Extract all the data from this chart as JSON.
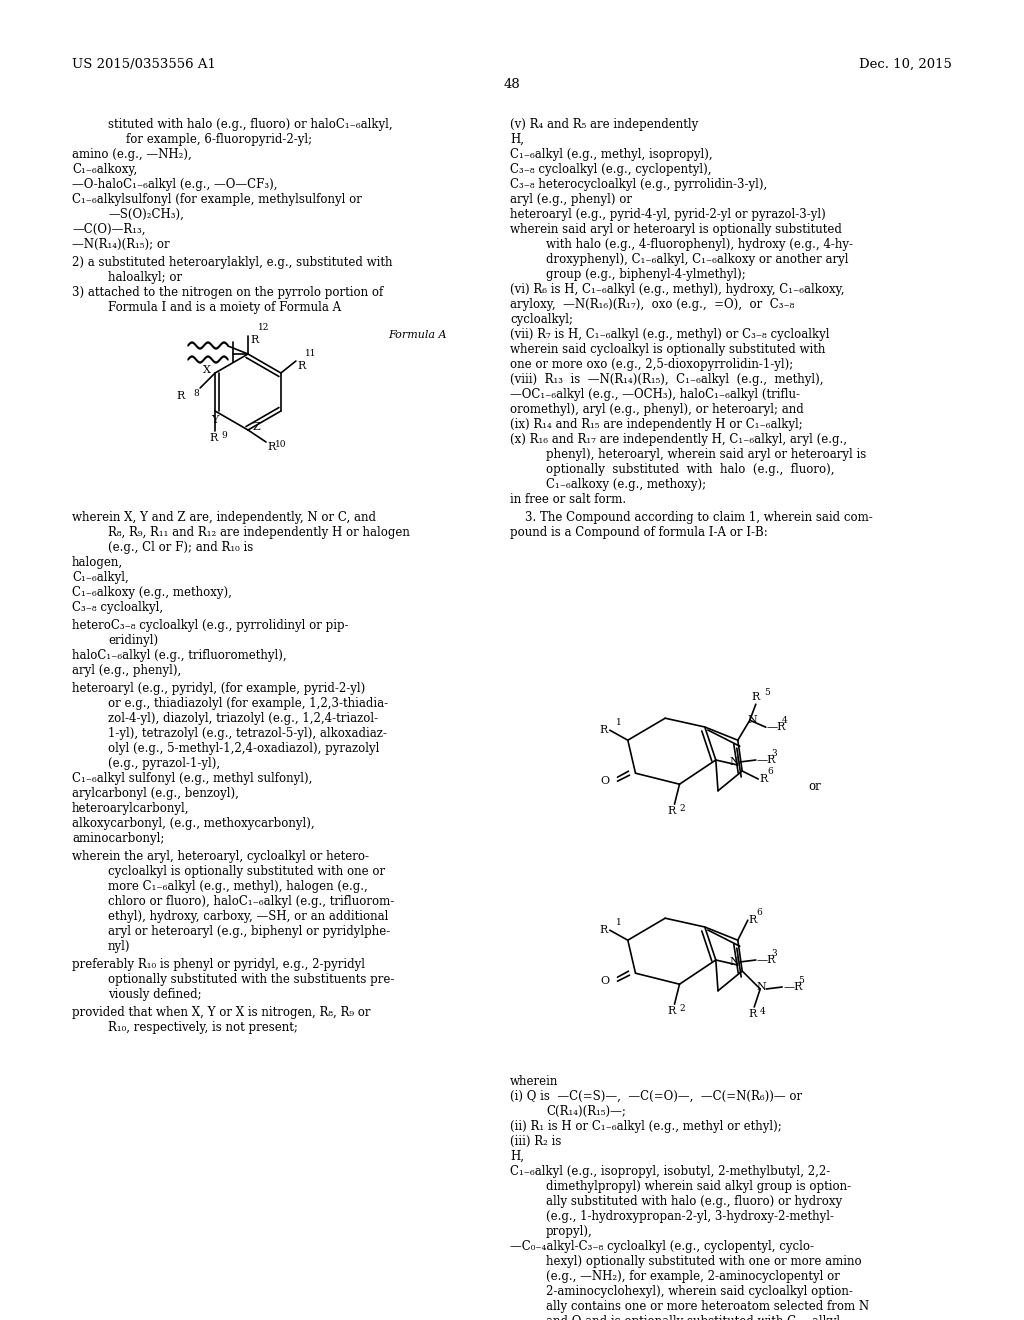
{
  "background_color": "#ffffff",
  "header_left": "US 2015/0353556 A1",
  "header_right": "Dec. 10, 2015",
  "page_number": "48",
  "fs": 8.5,
  "fs_small": 7.5,
  "fs_header": 9.5
}
